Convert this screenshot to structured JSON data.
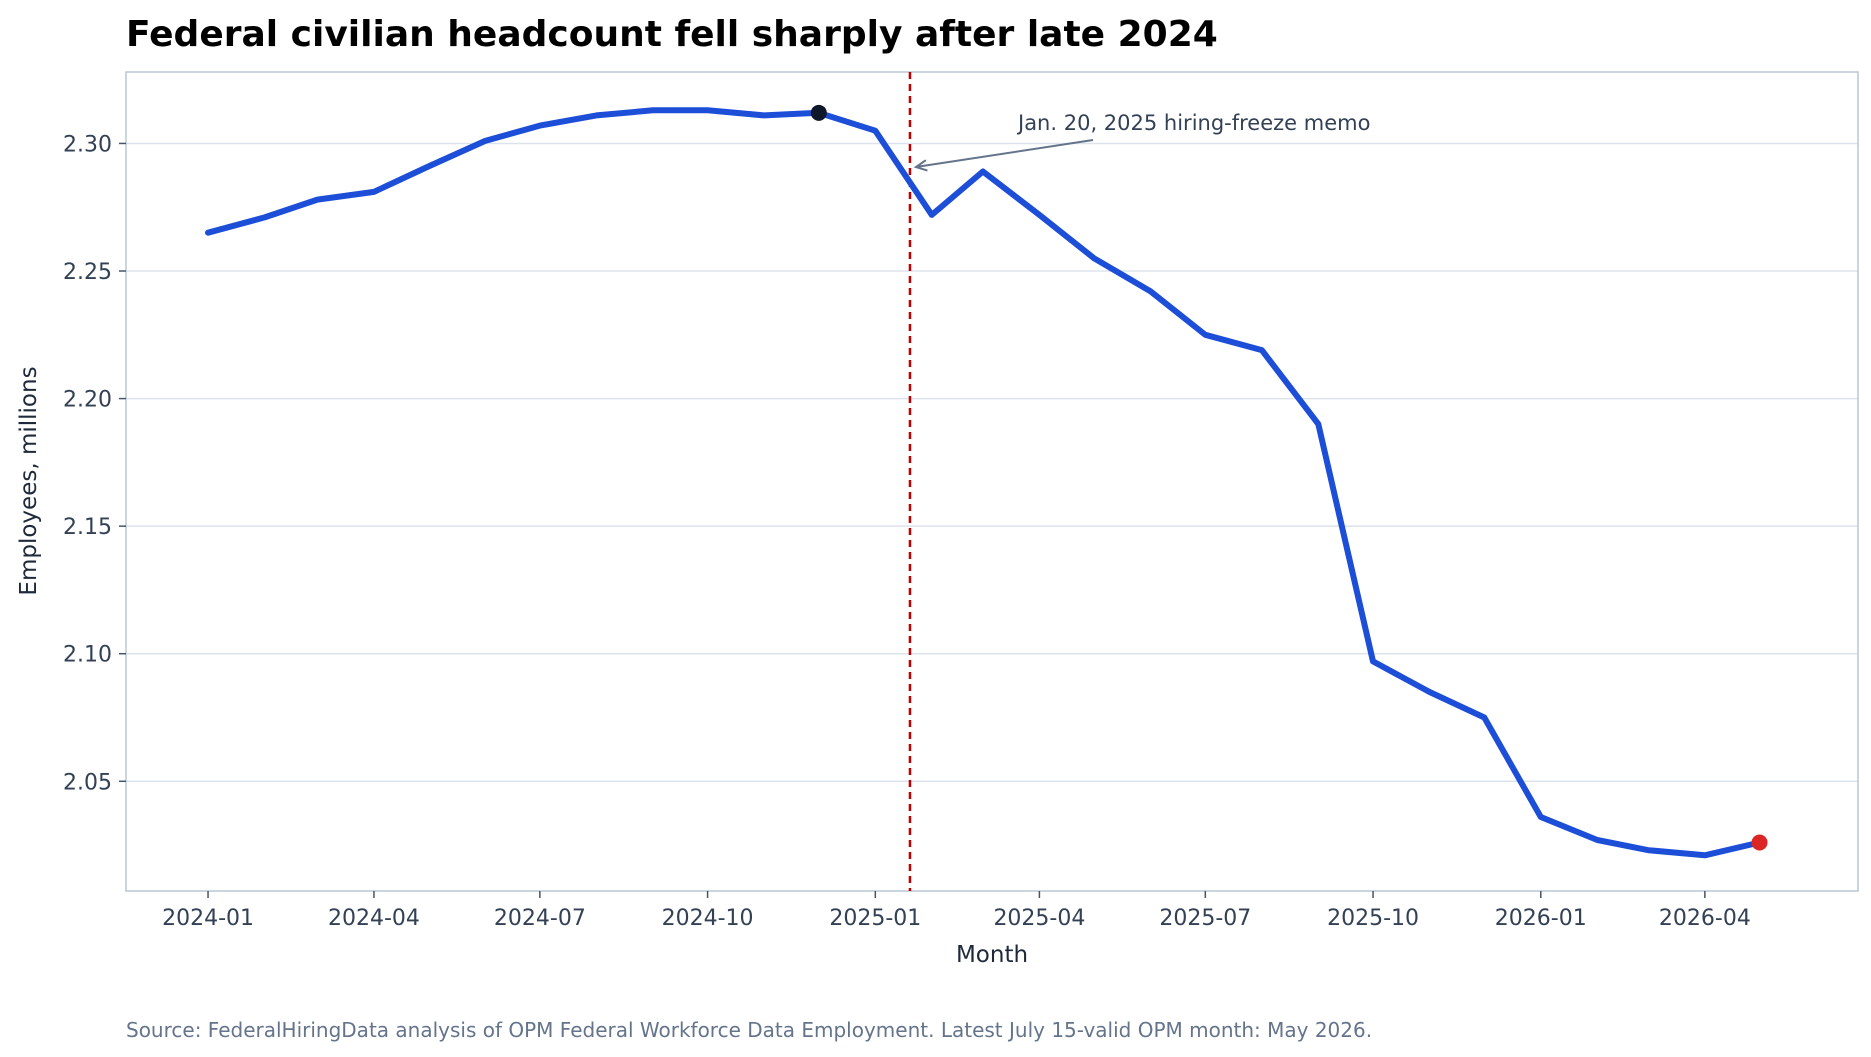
{
  "chart_data": {
    "type": "line",
    "title": "Federal civilian headcount fell sharply after late 2024",
    "xlabel": "Month",
    "ylabel": "Employees, millions",
    "x_ticks": [
      "2024-01",
      "2024-04",
      "2024-07",
      "2024-10",
      "2025-01",
      "2025-04",
      "2025-07",
      "2025-10",
      "2026-01",
      "2026-04"
    ],
    "y_ticks": [
      "2.05",
      "2.10",
      "2.15",
      "2.20",
      "2.25",
      "2.30"
    ],
    "ylim": [
      2.007,
      2.328
    ],
    "xlim": [
      "2023-11-17",
      "2026-06-24"
    ],
    "grid": "horizontal",
    "series": [
      {
        "color": "#1d4ed8",
        "x": [
          "2024-01",
          "2024-02",
          "2024-03",
          "2024-04",
          "2024-05",
          "2024-06",
          "2024-07",
          "2024-08",
          "2024-09",
          "2024-10",
          "2024-11",
          "2024-12",
          "2025-01",
          "2025-02",
          "2025-03",
          "2025-04",
          "2025-05",
          "2025-06",
          "2025-07",
          "2025-08",
          "2025-09",
          "2025-10",
          "2025-11",
          "2025-12",
          "2026-01",
          "2026-02",
          "2026-03",
          "2026-04",
          "2026-05"
        ],
        "values": [
          2.265,
          2.271,
          2.278,
          2.281,
          2.291,
          2.301,
          2.307,
          2.311,
          2.313,
          2.313,
          2.311,
          2.312,
          2.305,
          2.272,
          2.289,
          2.272,
          2.255,
          2.242,
          2.225,
          2.219,
          2.19,
          2.097,
          2.085,
          2.075,
          2.036,
          2.027,
          2.023,
          2.021,
          2.026
        ]
      }
    ],
    "highlights": [
      {
        "x": "2024-12",
        "value": 2.312,
        "color": "#0f172a"
      },
      {
        "x": "2026-05",
        "value": 2.026,
        "color": "#dc2626"
      }
    ],
    "reference_line": {
      "x": "2025-01-20",
      "color": "#c00000"
    },
    "annotation": "Jan. 20, 2025 hiring-freeze memo",
    "source": "Source: FederalHiringData analysis of OPM Federal Workforce Data Employment. Latest July 15-valid OPM month: May 2026."
  }
}
